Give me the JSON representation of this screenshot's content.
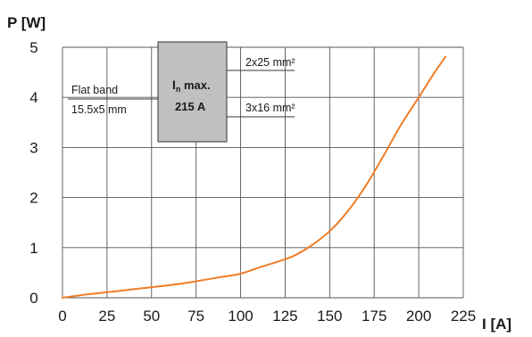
{
  "chart_data": {
    "type": "line",
    "xlabel": "I [A]",
    "ylabel": "P [W]",
    "xlim": [
      0,
      225
    ],
    "ylim": [
      0,
      5
    ],
    "x_ticks": [
      "0",
      "25",
      "50",
      "75",
      "100",
      "125",
      "150",
      "175",
      "200",
      "225"
    ],
    "y_ticks": [
      "0",
      "1",
      "2",
      "3",
      "4",
      "5"
    ],
    "grid": true,
    "series": [
      {
        "color": "#f07d27",
        "points": [
          [
            0,
            0.0
          ],
          [
            10,
            0.05
          ],
          [
            20,
            0.09
          ],
          [
            30,
            0.13
          ],
          [
            40,
            0.17
          ],
          [
            50,
            0.21
          ],
          [
            60,
            0.25
          ],
          [
            70,
            0.3
          ],
          [
            80,
            0.36
          ],
          [
            90,
            0.42
          ],
          [
            100,
            0.48
          ],
          [
            110,
            0.6
          ],
          [
            120,
            0.71
          ],
          [
            130,
            0.84
          ],
          [
            140,
            1.05
          ],
          [
            150,
            1.33
          ],
          [
            160,
            1.72
          ],
          [
            170,
            2.22
          ],
          [
            180,
            2.82
          ],
          [
            190,
            3.45
          ],
          [
            200,
            4.0
          ],
          [
            208,
            4.45
          ],
          [
            215,
            4.81
          ]
        ]
      }
    ],
    "annotations": {
      "box_line1_main": "I",
      "box_line1_sub": "n",
      "box_line1_rest": " max.",
      "box_line2": "215 A",
      "box_color": "#c0c0c0",
      "label_flatband_1": "Flat band",
      "label_flatband_2": "15.5x5 mm",
      "label_2x25": "2x25 mm²",
      "label_3x16": "3x16 mm²"
    }
  }
}
